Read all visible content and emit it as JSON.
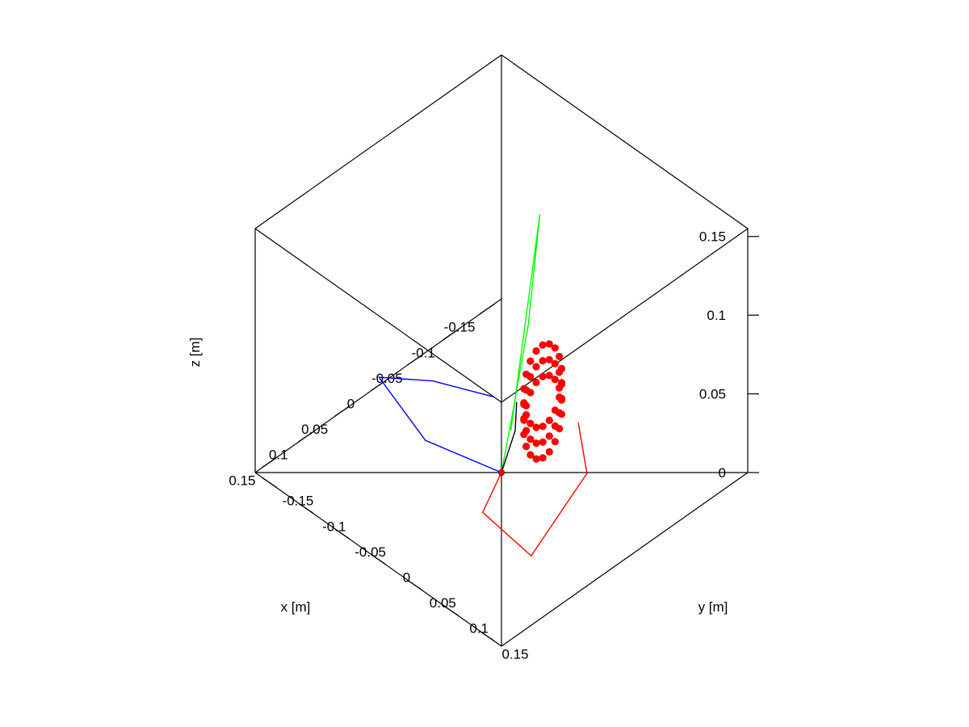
{
  "chart_data": {
    "type": "scatter",
    "projection": "isometric-3d",
    "grid": false,
    "axes": {
      "x": {
        "label": "x [m]",
        "range": [
          -0.17,
          0.17
        ],
        "ticks": [
          -0.15,
          -0.1,
          -0.05,
          0,
          0.05,
          0.1,
          0.15
        ],
        "tick_labels": [
          "-0.15",
          "-0.1",
          "-0.05",
          "0",
          "0.05",
          "0.1",
          "0.15"
        ]
      },
      "y": {
        "label": "y [m]",
        "range": [
          -0.17,
          0.17
        ],
        "ticks": [
          -0.15,
          -0.1,
          -0.05,
          0,
          0.05,
          0.1,
          0.15
        ],
        "tick_labels": [
          "-0.15",
          "-0.1",
          "-0.05",
          "0",
          "0.05",
          "0.1",
          "0.15"
        ]
      },
      "z": {
        "label": "z [m]",
        "range": [
          0,
          0.155
        ],
        "ticks": [
          0,
          0.05,
          0.1,
          0.15
        ],
        "tick_labels": [
          "0",
          "0.05",
          "0.1",
          "0.15"
        ]
      }
    },
    "series": [
      {
        "kind": "line",
        "color": "#0000ff",
        "points": [
          [
            0,
            0,
            0
          ],
          [
            0.021,
            -0.084,
            0
          ],
          [
            0.042,
            -0.127,
            0.033
          ],
          [
            -0.036,
            -0.131,
            0.004
          ],
          [
            -0.069,
            -0.079,
            0
          ]
        ]
      },
      {
        "kind": "line",
        "color": "#ff0000",
        "points": [
          [
            0,
            0,
            0
          ],
          [
            0.052,
            0.026,
            0
          ],
          [
            0.061,
            0.102,
            0
          ],
          [
            0.008,
            0.126,
            0.043
          ],
          [
            -0.031,
            0.075,
            0.046
          ]
        ]
      },
      {
        "kind": "line",
        "color": "#00ff00",
        "points": [
          [
            0,
            0,
            0
          ],
          [
            0.014,
            0.027,
            0.045
          ],
          [
            0.002,
            0.039,
            0.107
          ],
          [
            -0.008,
            0.045,
            0.176
          ],
          [
            -0.009,
            0.004,
            0.025
          ]
        ]
      },
      {
        "kind": "line",
        "color": "#000000",
        "points": [
          [
            0,
            0,
            0
          ],
          [
            -0.012,
            0.007,
            0.025
          ],
          [
            -0.018,
            0.003,
            0.04
          ]
        ]
      },
      {
        "kind": "point",
        "color": "#ff0000",
        "points": [
          [
            0,
            0,
            0
          ]
        ]
      },
      {
        "kind": "scatter",
        "color": "#ff0000",
        "generator": {
          "rings": [
            0.03,
            0.04,
            0.05
          ],
          "center": [
            -0.0365,
            0.0205
          ],
          "semi_axes": [
            0.0385,
            0.0385,
            0.0069
          ],
          "phase": 0.7,
          "count": 18
        }
      }
    ]
  }
}
